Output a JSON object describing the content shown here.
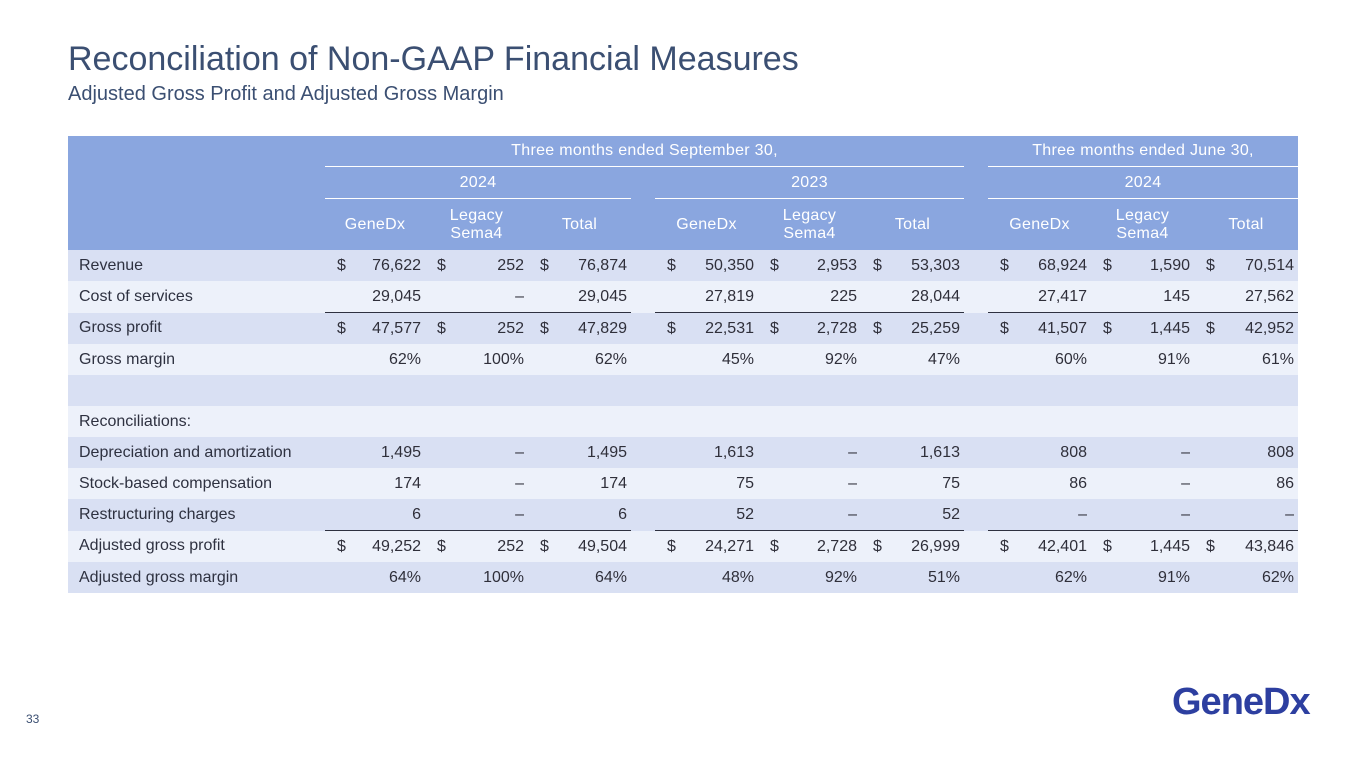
{
  "title": "Reconciliation of Non-GAAP Financial Measures",
  "subtitle": "Adjusted Gross Profit and Adjusted Gross Margin",
  "page_number": "33",
  "logo_text": "GeneDx",
  "table": {
    "period_headers": [
      "Three months ended September 30,",
      "Three months ended June 30,"
    ],
    "year_headers": [
      "2024",
      "2023",
      "2024"
    ],
    "column_headers": [
      "GeneDx",
      "Legacy Sema4",
      "Total"
    ],
    "rows": [
      {
        "label": "Revenue",
        "dollar": true,
        "values": [
          "76,622",
          "252",
          "76,874",
          "50,350",
          "2,953",
          "53,303",
          "68,924",
          "1,590",
          "70,514"
        ]
      },
      {
        "label": "Cost of services",
        "dollar": false,
        "values": [
          "29,045",
          "–",
          "29,045",
          "27,819",
          "225",
          "28,044",
          "27,417",
          "145",
          "27,562"
        ]
      },
      {
        "label": "Gross profit",
        "dollar": true,
        "values": [
          "47,577",
          "252",
          "47,829",
          "22,531",
          "2,728",
          "25,259",
          "41,507",
          "1,445",
          "42,952"
        ]
      },
      {
        "label": "Gross margin",
        "dollar": false,
        "values": [
          "62%",
          "100%",
          "62%",
          "45%",
          "92%",
          "47%",
          "60%",
          "91%",
          "61%"
        ]
      },
      {
        "label": "",
        "dollar": false,
        "values": [
          "",
          "",
          "",
          "",
          "",
          "",
          "",
          "",
          ""
        ]
      },
      {
        "label": "Reconciliations:",
        "dollar": false,
        "values": [
          "",
          "",
          "",
          "",
          "",
          "",
          "",
          "",
          ""
        ]
      },
      {
        "label": "Depreciation and amortization",
        "dollar": false,
        "values": [
          "1,495",
          "–",
          "1,495",
          "1,613",
          "–",
          "1,613",
          "808",
          "–",
          "808"
        ]
      },
      {
        "label": "Stock-based compensation",
        "dollar": false,
        "values": [
          "174",
          "–",
          "174",
          "75",
          "–",
          "75",
          "86",
          "–",
          "86"
        ]
      },
      {
        "label": "Restructuring charges",
        "dollar": false,
        "values": [
          "6",
          "–",
          "6",
          "52",
          "–",
          "52",
          "–",
          "–",
          "–"
        ]
      },
      {
        "label": "Adjusted gross profit",
        "dollar": true,
        "values": [
          "49,252",
          "252",
          "49,504",
          "24,271",
          "2,728",
          "26,999",
          "42,401",
          "1,445",
          "43,846"
        ]
      },
      {
        "label": "Adjusted gross margin",
        "dollar": false,
        "values": [
          "64%",
          "100%",
          "64%",
          "48%",
          "92%",
          "51%",
          "62%",
          "91%",
          "62%"
        ]
      }
    ]
  },
  "colors": {
    "header_bg": "#8aa6df",
    "row_dark": "#d9e0f3",
    "row_light": "#edf1fa",
    "title": "#3b4f72",
    "logo": "#2d3fa0"
  }
}
